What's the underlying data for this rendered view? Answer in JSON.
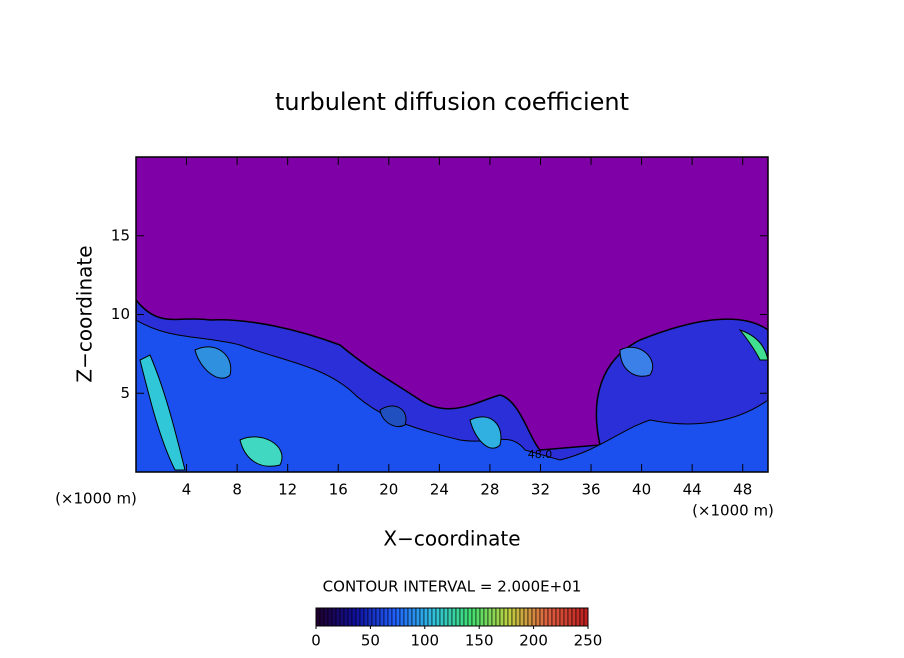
{
  "chart_data": {
    "type": "contour",
    "title": "turbulent diffusion coefficient",
    "x_label": "X−coordinate",
    "y_label": "Z−coordinate",
    "x_unit": "(×1000 m)",
    "y_unit": "(×1000 m)",
    "xlim": [
      0,
      50
    ],
    "xticks": [
      4,
      8,
      12,
      16,
      20,
      24,
      28,
      32,
      36,
      40,
      44,
      48
    ],
    "ylim": [
      0,
      20
    ],
    "yticks": [
      5,
      10,
      15
    ],
    "contour_label": "48.0",
    "colorbar": {
      "title": "CONTOUR INTERVAL = 2.000E+01",
      "lim": [
        0,
        250
      ],
      "ticks": [
        0,
        50,
        100,
        150,
        200,
        250
      ],
      "colors": [
        "#200030",
        "#1010a0",
        "#2060ff",
        "#30c0e0",
        "#40e070",
        "#c0d040",
        "#e06040",
        "#c02020"
      ]
    }
  }
}
